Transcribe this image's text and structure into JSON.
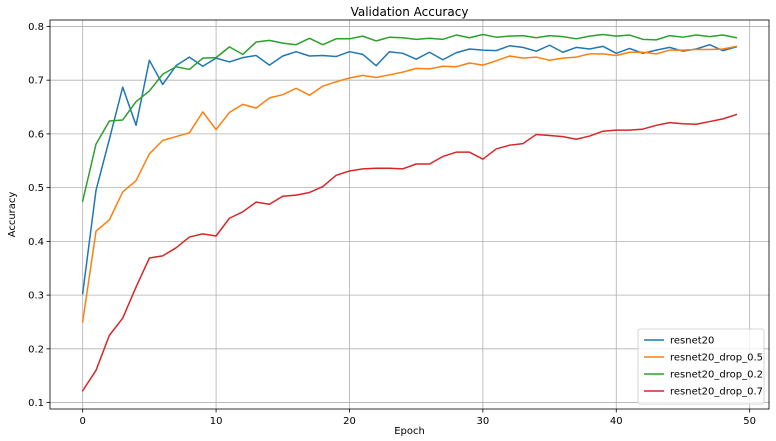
{
  "chart_data": {
    "type": "line",
    "title": "Validation Accuracy",
    "xlabel": "Epoch",
    "ylabel": "Accuracy",
    "xlim": [
      -2.45,
      51.45
    ],
    "ylim": [
      0.088,
      0.812
    ],
    "xticks": [
      0,
      10,
      20,
      30,
      40,
      50
    ],
    "yticks": [
      0.1,
      0.2,
      0.3,
      0.4,
      0.5,
      0.6,
      0.7,
      0.8
    ],
    "xtick_labels": [
      "0",
      "10",
      "20",
      "30",
      "40",
      "50"
    ],
    "ytick_labels": [
      "0.1",
      "0.2",
      "0.3",
      "0.4",
      "0.5",
      "0.6",
      "0.7",
      "0.8"
    ],
    "grid": true,
    "legend_position": "lower-right",
    "x": [
      0,
      1,
      2,
      3,
      4,
      5,
      6,
      7,
      8,
      9,
      10,
      11,
      12,
      13,
      14,
      15,
      16,
      17,
      18,
      19,
      20,
      21,
      22,
      23,
      24,
      25,
      26,
      27,
      28,
      29,
      30,
      31,
      32,
      33,
      34,
      35,
      36,
      37,
      38,
      39,
      40,
      41,
      42,
      43,
      44,
      45,
      46,
      47,
      48,
      49
    ],
    "series": [
      {
        "name": "resnet20",
        "color": "#1f77b4",
        "values": [
          0.303,
          0.495,
          0.59,
          0.687,
          0.616,
          0.737,
          0.692,
          0.727,
          0.743,
          0.726,
          0.741,
          0.734,
          0.742,
          0.746,
          0.728,
          0.745,
          0.753,
          0.745,
          0.746,
          0.744,
          0.753,
          0.748,
          0.727,
          0.753,
          0.75,
          0.739,
          0.752,
          0.738,
          0.751,
          0.758,
          0.756,
          0.755,
          0.764,
          0.761,
          0.754,
          0.765,
          0.752,
          0.761,
          0.758,
          0.763,
          0.75,
          0.759,
          0.75,
          0.756,
          0.761,
          0.754,
          0.758,
          0.766,
          0.755,
          0.762
        ]
      },
      {
        "name": "resnet20_drop_0.5",
        "color": "#ff7f0e",
        "values": [
          0.25,
          0.419,
          0.44,
          0.492,
          0.513,
          0.563,
          0.588,
          0.595,
          0.602,
          0.641,
          0.608,
          0.64,
          0.655,
          0.648,
          0.667,
          0.673,
          0.685,
          0.672,
          0.689,
          0.697,
          0.704,
          0.709,
          0.705,
          0.71,
          0.715,
          0.722,
          0.721,
          0.726,
          0.725,
          0.732,
          0.728,
          0.736,
          0.745,
          0.741,
          0.743,
          0.737,
          0.741,
          0.743,
          0.749,
          0.749,
          0.746,
          0.752,
          0.752,
          0.749,
          0.756,
          0.756,
          0.757,
          0.757,
          0.758,
          0.763
        ]
      },
      {
        "name": "resnet20_drop_0.2",
        "color": "#2ca02c",
        "values": [
          0.475,
          0.581,
          0.624,
          0.626,
          0.66,
          0.68,
          0.711,
          0.725,
          0.72,
          0.741,
          0.742,
          0.762,
          0.748,
          0.771,
          0.774,
          0.769,
          0.766,
          0.778,
          0.766,
          0.777,
          0.777,
          0.782,
          0.773,
          0.78,
          0.779,
          0.776,
          0.778,
          0.776,
          0.784,
          0.779,
          0.785,
          0.78,
          0.782,
          0.783,
          0.779,
          0.783,
          0.781,
          0.777,
          0.782,
          0.785,
          0.782,
          0.784,
          0.776,
          0.775,
          0.783,
          0.78,
          0.784,
          0.781,
          0.784,
          0.779
        ]
      },
      {
        "name": "resnet20_drop_0.7",
        "color": "#d62728",
        "values": [
          0.122,
          0.16,
          0.225,
          0.257,
          0.315,
          0.369,
          0.373,
          0.388,
          0.408,
          0.414,
          0.41,
          0.443,
          0.455,
          0.473,
          0.469,
          0.484,
          0.486,
          0.491,
          0.502,
          0.523,
          0.531,
          0.535,
          0.536,
          0.536,
          0.535,
          0.544,
          0.544,
          0.558,
          0.566,
          0.566,
          0.553,
          0.572,
          0.579,
          0.582,
          0.599,
          0.597,
          0.595,
          0.59,
          0.596,
          0.605,
          0.607,
          0.607,
          0.609,
          0.616,
          0.621,
          0.619,
          0.618,
          0.623,
          0.628,
          0.636
        ]
      }
    ]
  }
}
